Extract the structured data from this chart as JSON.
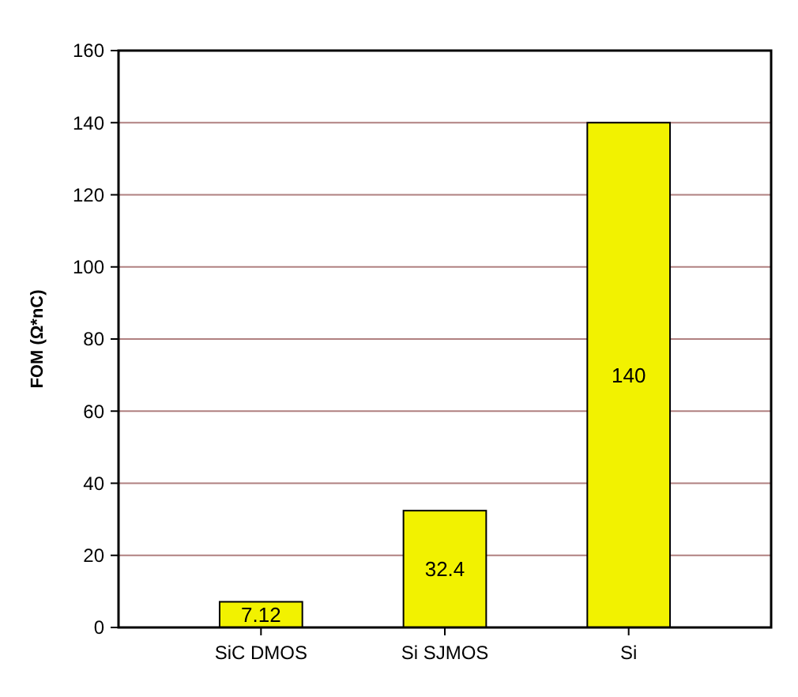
{
  "chart_data": {
    "type": "bar",
    "ylabel": "FOM (Ω*nC)",
    "categories": [
      "SiC DMOS",
      "Si SJMOS",
      "Si"
    ],
    "values": [
      7.12,
      32.4,
      140
    ],
    "color": "#f2f200",
    "ylim": [
      0,
      160
    ],
    "yticks": [
      0,
      20,
      40,
      60,
      80,
      100,
      120,
      140,
      160
    ],
    "grid": "y",
    "data_labels": true
  }
}
